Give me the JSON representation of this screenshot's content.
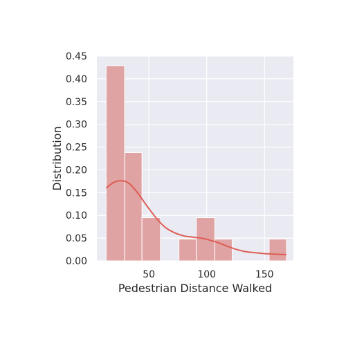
{
  "chart_data": {
    "type": "bar",
    "subtype": "histogram-with-kde",
    "xlabel": "Pedestrian Distance Walked",
    "ylabel": "Distribution",
    "xlim": [
      5,
      175
    ],
    "ylim": [
      0,
      0.45
    ],
    "x_ticks": [
      50,
      100,
      150
    ],
    "x_tick_labels": [
      "50",
      "100",
      "150"
    ],
    "y_ticks": [
      0,
      0.05,
      0.1,
      0.15,
      0.2,
      0.25,
      0.3,
      0.35,
      0.4,
      0.45
    ],
    "y_tick_labels": [
      "0.00",
      "0.05",
      "0.10",
      "0.15",
      "0.20",
      "0.25",
      "0.30",
      "0.35",
      "0.40",
      "0.45"
    ],
    "grid": true,
    "bars": [
      {
        "x0": 13,
        "x1": 29,
        "value": 0.429
      },
      {
        "x0": 29,
        "x1": 44,
        "value": 0.238
      },
      {
        "x0": 44,
        "x1": 60,
        "value": 0.095
      },
      {
        "x0": 60,
        "x1": 76,
        "value": 0.0
      },
      {
        "x0": 76,
        "x1": 91,
        "value": 0.048
      },
      {
        "x0": 91,
        "x1": 107,
        "value": 0.095
      },
      {
        "x0": 107,
        "x1": 122,
        "value": 0.048
      },
      {
        "x0": 122,
        "x1": 138,
        "value": 0.0
      },
      {
        "x0": 138,
        "x1": 154,
        "value": 0.0
      },
      {
        "x0": 154,
        "x1": 169,
        "value": 0.048
      }
    ],
    "kde": {
      "x": [
        13,
        20,
        27,
        33,
        40,
        48,
        56,
        64,
        72,
        80,
        88,
        95,
        102,
        110,
        118,
        126,
        134,
        142,
        150,
        158,
        166,
        169
      ],
      "y": [
        0.16,
        0.173,
        0.176,
        0.17,
        0.15,
        0.122,
        0.095,
        0.074,
        0.062,
        0.055,
        0.052,
        0.05,
        0.046,
        0.04,
        0.032,
        0.025,
        0.02,
        0.018,
        0.016,
        0.015,
        0.014,
        0.014
      ]
    },
    "colors": {
      "plot_background": "#eaeaf2",
      "grid": "#ffffff",
      "bar_fill": "#e0a3a3",
      "bar_edge": "#ffffff",
      "kde_line": "#dd5c54"
    }
  }
}
